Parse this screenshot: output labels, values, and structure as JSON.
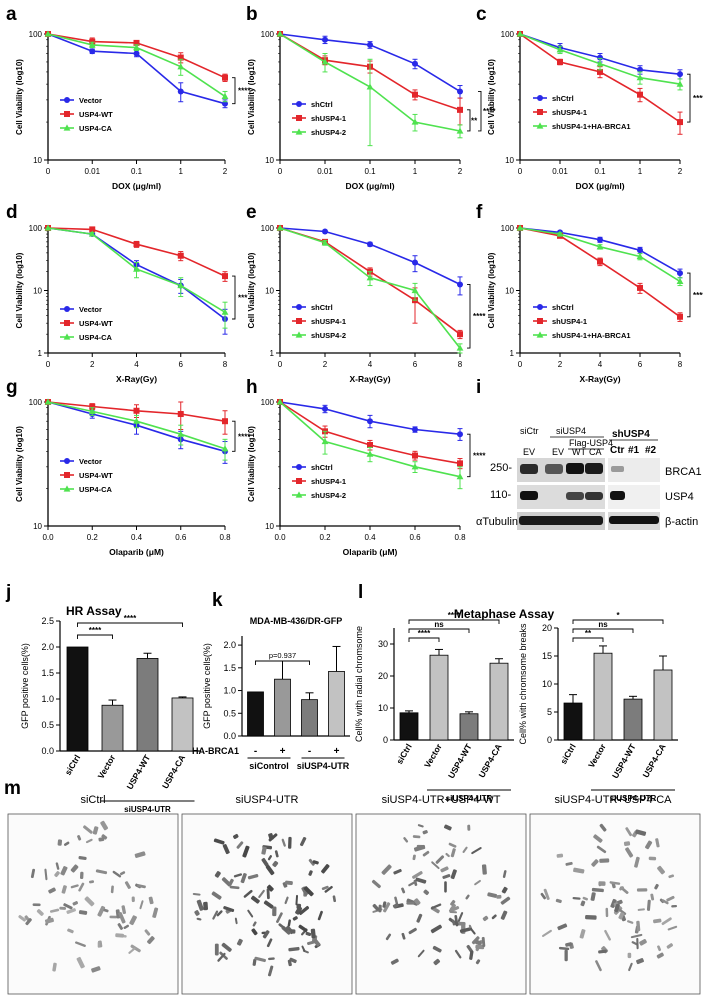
{
  "colors": {
    "blue": "#2929e8",
    "red": "#e3262b",
    "green": "#4fe24f",
    "black": "#000000",
    "bar_black": "#111111",
    "bar_light": "#c2c2c2",
    "bar_mid": "#7c7c7c",
    "bar_mid2": "#999999"
  },
  "panel_letters": [
    "a",
    "b",
    "c",
    "d",
    "e",
    "f",
    "g",
    "h",
    "i",
    "j",
    "k",
    "l",
    "m"
  ],
  "chart_data": [
    {
      "id": "a",
      "type": "line",
      "log_y": true,
      "xlabel": "DOX (μg/ml)",
      "ylabel": "Cell Viability (log10)",
      "x": [
        "0",
        "0.01",
        "0.1",
        "1",
        "2"
      ],
      "yticks": [
        "10",
        "100"
      ],
      "ylim": [
        10,
        100
      ],
      "legend_position": "center-left",
      "series": [
        {
          "name": "Vector",
          "color": "blue",
          "values": [
            100,
            73,
            70,
            35,
            28
          ],
          "err": [
            0,
            3,
            4,
            6,
            2
          ]
        },
        {
          "name": "USP4-WT",
          "color": "red",
          "values": [
            100,
            87,
            85,
            65,
            45
          ],
          "err": [
            0,
            6,
            3,
            6,
            3
          ]
        },
        {
          "name": "USP4-CA",
          "color": "green",
          "values": [
            100,
            82,
            78,
            55,
            32
          ],
          "err": [
            0,
            4,
            4,
            8,
            3
          ]
        }
      ],
      "significance": [
        "****"
      ]
    },
    {
      "id": "b",
      "type": "line",
      "log_y": true,
      "xlabel": "DOX (μg/ml)",
      "ylabel": "Cell Viability (log10)",
      "x": [
        "0",
        "0.01",
        "0.1",
        "1",
        "2"
      ],
      "yticks": [
        "10",
        "100"
      ],
      "ylim": [
        10,
        100
      ],
      "legend_position": "center-left",
      "series": [
        {
          "name": "shCtrl",
          "color": "blue",
          "values": [
            100,
            90,
            82,
            58,
            35
          ],
          "err": [
            0,
            6,
            5,
            5,
            4
          ]
        },
        {
          "name": "shUSP4-1",
          "color": "red",
          "values": [
            100,
            62,
            55,
            33,
            25
          ],
          "err": [
            0,
            5,
            6,
            3,
            6
          ]
        },
        {
          "name": "shUSP4-2",
          "color": "green",
          "values": [
            100,
            60,
            38,
            20,
            17
          ],
          "err": [
            0,
            10,
            25,
            3,
            2
          ]
        }
      ],
      "significance": [
        "****",
        "**"
      ]
    },
    {
      "id": "c",
      "type": "line",
      "log_y": true,
      "xlabel": "DOX (μg/ml)",
      "ylabel": "Cell Viability (log10)",
      "x": [
        "0",
        "0.01",
        "0.1",
        "1",
        "2"
      ],
      "yticks": [
        "10",
        "100"
      ],
      "ylim": [
        10,
        100
      ],
      "legend_position": "center-left",
      "series": [
        {
          "name": "shCtrl",
          "color": "blue",
          "values": [
            100,
            78,
            65,
            52,
            48
          ],
          "err": [
            0,
            6,
            5,
            4,
            4
          ]
        },
        {
          "name": "shUSP4-1",
          "color": "red",
          "values": [
            100,
            60,
            50,
            33,
            20
          ],
          "err": [
            0,
            3,
            5,
            4,
            4
          ]
        },
        {
          "name": "shUSP4-1+HA-BRCA1",
          "color": "green",
          "values": [
            100,
            75,
            58,
            45,
            40
          ],
          "err": [
            0,
            5,
            6,
            5,
            4
          ]
        }
      ],
      "significance": [
        "****"
      ]
    },
    {
      "id": "d",
      "type": "line",
      "log_y": true,
      "xlabel": "X-Ray(Gy)",
      "ylabel": "Cell Viability (log10)",
      "x": [
        "0",
        "2",
        "4",
        "6",
        "8"
      ],
      "yticks": [
        "1",
        "10",
        "100"
      ],
      "ylim": [
        1,
        100
      ],
      "legend_position": "bottom-left",
      "series": [
        {
          "name": "Vector",
          "color": "blue",
          "values": [
            100,
            80,
            26,
            12,
            3.5
          ],
          "err": [
            0,
            5,
            4,
            3,
            1.5
          ]
        },
        {
          "name": "USP4-WT",
          "color": "red",
          "values": [
            100,
            95,
            55,
            36,
            17
          ],
          "err": [
            0,
            4,
            6,
            6,
            3
          ]
        },
        {
          "name": "USP4-CA",
          "color": "green",
          "values": [
            100,
            80,
            22,
            12,
            4.5
          ],
          "err": [
            0,
            5,
            6,
            4,
            2
          ]
        }
      ],
      "significance": [
        "***"
      ]
    },
    {
      "id": "e",
      "type": "line",
      "log_y": true,
      "xlabel": "X-Ray(Gy)",
      "ylabel": "Cell Viability (log10)",
      "x": [
        "0",
        "2",
        "4",
        "6",
        "8"
      ],
      "yticks": [
        "1",
        "10",
        "100"
      ],
      "ylim": [
        1,
        100
      ],
      "legend_position": "bottom-left",
      "series": [
        {
          "name": "shCtrl",
          "color": "blue",
          "values": [
            100,
            88,
            55,
            28,
            12.5
          ],
          "err": [
            0,
            4,
            4,
            8,
            4
          ]
        },
        {
          "name": "shUSP4-1",
          "color": "red",
          "values": [
            100,
            60,
            20,
            7,
            2
          ],
          "err": [
            0,
            5,
            3,
            4,
            0.3
          ]
        },
        {
          "name": "shUSP4-2",
          "color": "green",
          "values": [
            100,
            58,
            16,
            10,
            1.2
          ],
          "err": [
            0,
            5,
            4,
            3,
            0.2
          ]
        }
      ],
      "significance": [
        "****"
      ]
    },
    {
      "id": "f",
      "type": "line",
      "log_y": true,
      "xlabel": "X-Ray(Gy)",
      "ylabel": "Cell Viability (log10)",
      "x": [
        "0",
        "2",
        "4",
        "6",
        "8"
      ],
      "yticks": [
        "1",
        "10",
        "100"
      ],
      "ylim": [
        1,
        100
      ],
      "legend_position": "bottom-left",
      "series": [
        {
          "name": "shCtrl",
          "color": "blue",
          "values": [
            100,
            85,
            65,
            44,
            19
          ],
          "err": [
            0,
            4,
            6,
            5,
            3
          ]
        },
        {
          "name": "shUSP4-1",
          "color": "red",
          "values": [
            100,
            75,
            29,
            11,
            3.8
          ],
          "err": [
            0,
            4,
            4,
            2,
            0.6
          ]
        },
        {
          "name": "shUSP4-1+HA-BRCA1",
          "color": "green",
          "values": [
            100,
            80,
            50,
            35,
            14
          ],
          "err": [
            0,
            4,
            4,
            4,
            2
          ]
        }
      ],
      "significance": [
        "****"
      ]
    },
    {
      "id": "g",
      "type": "line",
      "log_y": true,
      "xlabel": "Olaparib (μM)",
      "ylabel": "Cell Viability (log10)",
      "x": [
        "0.0",
        "0.2",
        "0.4",
        "0.6",
        "0.8"
      ],
      "yticks": [
        "10",
        "100"
      ],
      "ylim": [
        10,
        100
      ],
      "legend_position": "center-left",
      "series": [
        {
          "name": "Vector",
          "color": "blue",
          "values": [
            100,
            80,
            65,
            50,
            40
          ],
          "err": [
            0,
            6,
            10,
            8,
            8
          ]
        },
        {
          "name": "USP4-WT",
          "color": "red",
          "values": [
            100,
            92,
            85,
            80,
            70
          ],
          "err": [
            0,
            5,
            10,
            20,
            15
          ]
        },
        {
          "name": "USP4-CA",
          "color": "green",
          "values": [
            100,
            84,
            70,
            55,
            42
          ],
          "err": [
            0,
            6,
            8,
            10,
            8
          ]
        }
      ],
      "significance": [
        "****"
      ]
    },
    {
      "id": "h",
      "type": "line",
      "log_y": true,
      "xlabel": "Olaparib (μM)",
      "ylabel": "Cell Viability (log10)",
      "x": [
        "0.0",
        "0.2",
        "0.4",
        "0.6",
        "0.8"
      ],
      "yticks": [
        "10",
        "100"
      ],
      "ylim": [
        10,
        100
      ],
      "legend_position": "center-left",
      "series": [
        {
          "name": "shCtrl",
          "color": "blue",
          "values": [
            100,
            88,
            70,
            60,
            55
          ],
          "err": [
            0,
            6,
            8,
            3,
            6
          ]
        },
        {
          "name": "shUSP4-1",
          "color": "red",
          "values": [
            100,
            58,
            45,
            37,
            32
          ],
          "err": [
            0,
            6,
            4,
            3,
            3
          ]
        },
        {
          "name": "shUSP4-2",
          "color": "green",
          "values": [
            100,
            48,
            38,
            30,
            25
          ],
          "err": [
            0,
            10,
            5,
            3,
            5
          ]
        }
      ],
      "significance": [
        "****"
      ]
    },
    {
      "id": "j",
      "type": "bar",
      "title": "HR Assay",
      "ylabel": "GFP positive cells(%)",
      "categories": [
        "siCtrl",
        "Vector",
        "USP4-WT",
        "USP4-CA"
      ],
      "values": [
        2.0,
        0.88,
        1.78,
        1.02
      ],
      "err": [
        0,
        0.1,
        0.1,
        0.02
      ],
      "bar_colors": [
        "bar_black",
        "bar_mid2",
        "bar_mid",
        "bar_light"
      ],
      "yticks": [
        "0.0",
        "0.5",
        "1.0",
        "1.5",
        "2.0",
        "2.5"
      ],
      "ylim": [
        0,
        2.5
      ],
      "group_label": "siUSP4-UTR",
      "significance": [
        "****",
        "****"
      ]
    },
    {
      "id": "k",
      "type": "bar",
      "title": "MDA-MB-436/DR-GFP",
      "ylabel": "GFP positive cells(%)",
      "categories": [
        "siControl -",
        "siControl +",
        "siUSP4-UTR -",
        "siUSP4-UTR +"
      ],
      "values": [
        0.97,
        1.25,
        0.8,
        1.42
      ],
      "err": [
        0,
        0.4,
        0.15,
        0.55
      ],
      "bar_colors": [
        "bar_black",
        "bar_mid2",
        "bar_mid",
        "bar_light"
      ],
      "yticks": [
        "0.0",
        "0.5",
        "1.0",
        "1.5",
        "2.0"
      ],
      "ylim": [
        0,
        2.2
      ],
      "row_label": "HA-BRCA1",
      "row_signs": [
        "-",
        "+",
        "-",
        "+"
      ],
      "group_labels": [
        "siControl",
        "siUSP4-UTR"
      ],
      "significance": [
        "p=0.937"
      ]
    },
    {
      "id": "l1",
      "type": "bar",
      "title": "Metaphase Assay",
      "ylabel": "Cell% with radial chromsome",
      "categories": [
        "siCtrl",
        "Vector",
        "USP4-WT",
        "USP4-CA"
      ],
      "values": [
        8.5,
        26.5,
        8.2,
        24
      ],
      "err": [
        0.6,
        1.8,
        0.6,
        1.4
      ],
      "bar_colors": [
        "bar_black",
        "bar_light",
        "bar_mid",
        "bar_light"
      ],
      "yticks": [
        "0",
        "10",
        "20",
        "30"
      ],
      "ylim": [
        0,
        35
      ],
      "group_label": "siUSP4-UTR",
      "significance": [
        "****",
        "ns",
        "****"
      ]
    },
    {
      "id": "l2",
      "type": "bar",
      "ylabel": "Cell% with chromsome breaks",
      "categories": [
        "siCtrl",
        "Vector",
        "USP4-WT",
        "USP4-CA"
      ],
      "values": [
        6.6,
        15.5,
        7.3,
        12.5
      ],
      "err": [
        1.5,
        1.3,
        0.5,
        2.5
      ],
      "bar_colors": [
        "bar_black",
        "bar_light",
        "bar_mid",
        "bar_light"
      ],
      "yticks": [
        "0",
        "5",
        "10",
        "15",
        "20"
      ],
      "ylim": [
        0,
        20
      ],
      "group_label": "siUSP4-UTR",
      "significance": [
        "**",
        "ns",
        "*"
      ]
    }
  ],
  "blot": {
    "left_header_siCtrl": "siCtr",
    "left_header_siUSP4": "siUSP4",
    "flag_label": "Flag-USP4",
    "lane_labels": [
      "EV",
      "EV",
      "WT",
      "CA"
    ],
    "right_header": "shUSP4",
    "right_lanes": [
      "Ctr",
      "#1",
      "#2"
    ],
    "mw_markers": [
      "250-",
      "110-"
    ],
    "row_labels": [
      "BRCA1",
      "USP4",
      "β-actin"
    ],
    "loading_label_left": "αTubulin"
  },
  "metaphase": {
    "titles": [
      "siCtrl",
      "siUSP4-UTR",
      "siUSP4-UTR+USP4-WT",
      "siUSP4-UTR+USP4-CA"
    ]
  }
}
